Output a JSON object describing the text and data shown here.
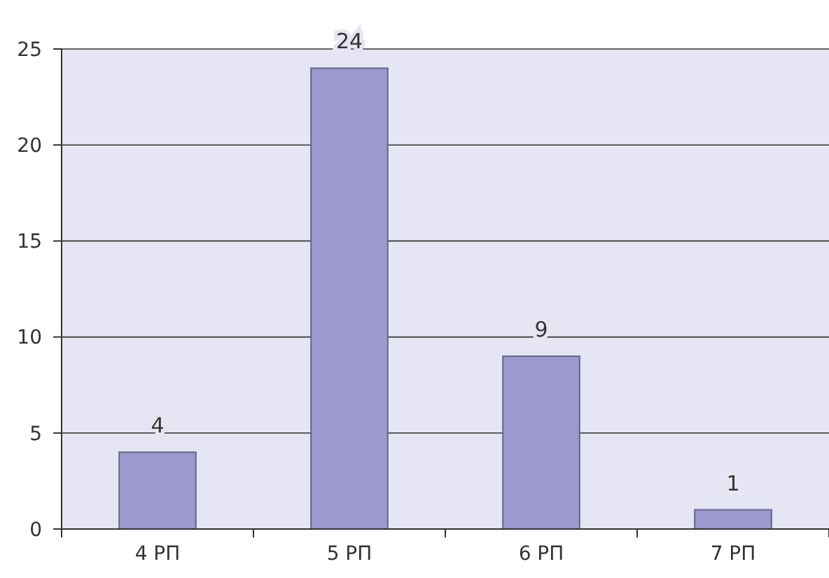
{
  "chart_data": {
    "type": "bar",
    "categories": [
      "4 РП",
      "5 РП",
      "6 РП",
      "7 РП"
    ],
    "values": [
      4,
      24,
      9,
      1
    ],
    "color": "#9b99cf",
    "ylim": [
      0,
      25
    ],
    "yticks": [
      0,
      5,
      10,
      15,
      20,
      25
    ],
    "grid": "y",
    "data_labels": true
  }
}
